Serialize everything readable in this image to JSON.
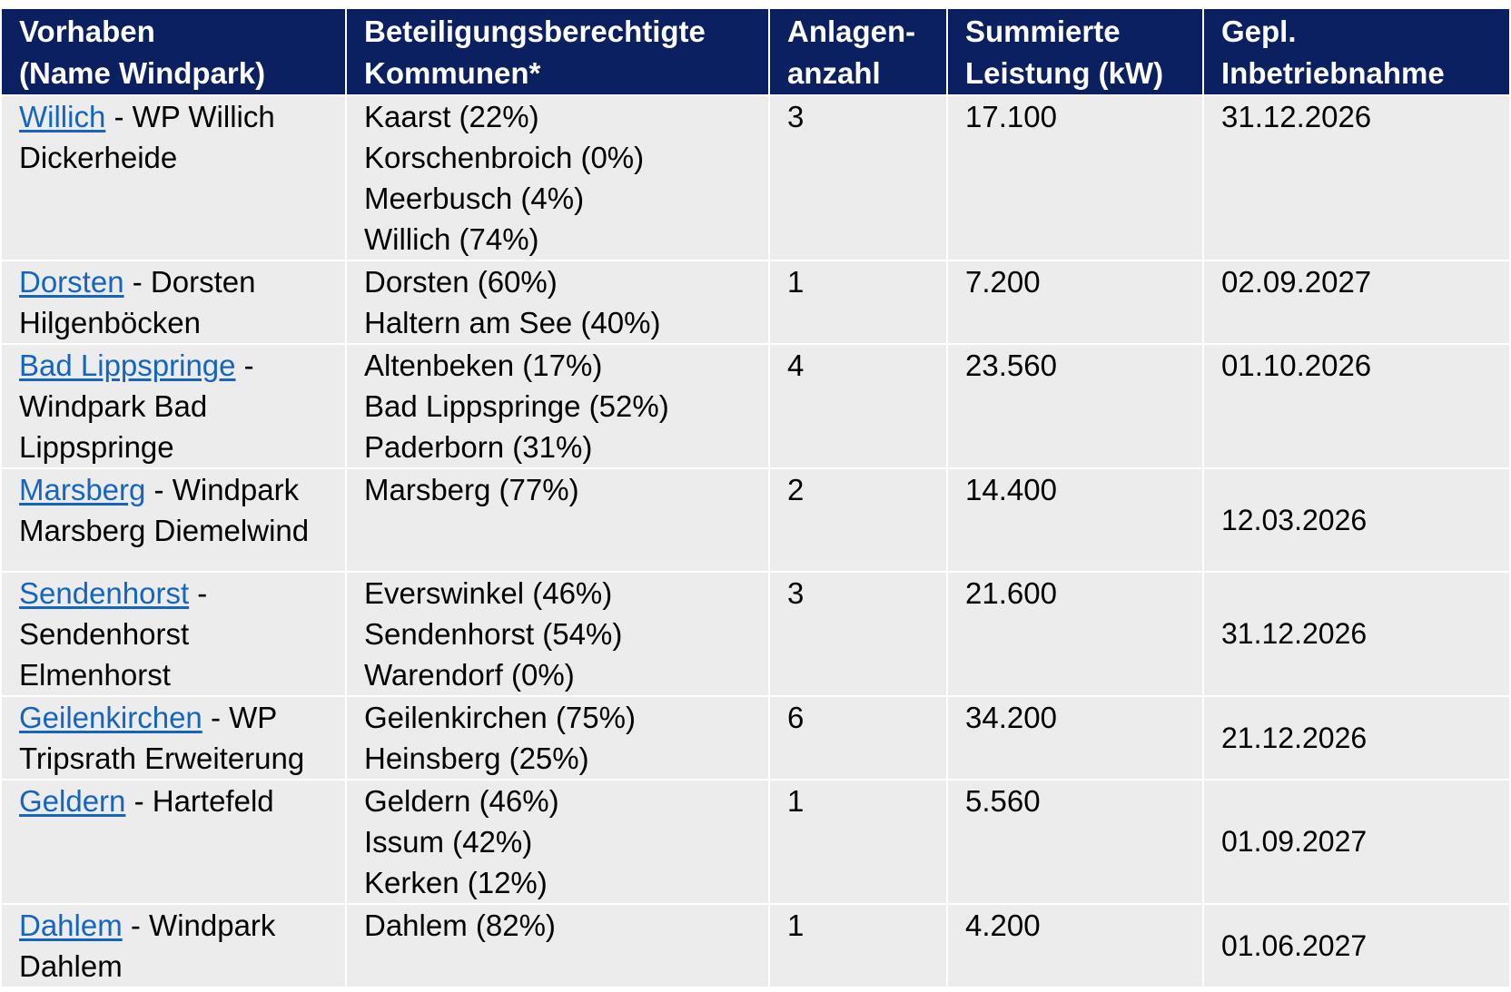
{
  "headers": [
    {
      "l1": "Vorhaben",
      "l2": "(Name Windpark)"
    },
    {
      "l1": "Beteiligungsberechtigte",
      "l2": "Kommunen*"
    },
    {
      "l1": "Anlagen-",
      "l2": "anzahl"
    },
    {
      "l1": "Summierte",
      "l2": "Leistung (kW)"
    },
    {
      "l1": "Gepl.",
      "l2": "Inbetriebnahme"
    }
  ],
  "rows": [
    {
      "link": "Willich",
      "name_lines": [
        " - WP Willich",
        "Dickerheide"
      ],
      "kommunen": [
        "Kaarst (22%)",
        "Korschenbroich (0%)",
        "Meerbusch (4%)",
        "Willich (74%)"
      ],
      "anzahl": "3",
      "leistung": "17.100",
      "datum": "31.12.2026"
    },
    {
      "link": "Dorsten",
      "name_lines": [
        " - Dorsten",
        "Hilgenböcken"
      ],
      "kommunen": [
        "Dorsten (60%)",
        "Haltern am See (40%)"
      ],
      "anzahl": "1",
      "leistung": "7.200",
      "datum": "02.09.2027"
    },
    {
      "link": "Bad Lippspringe",
      "name_lines": [
        " -",
        "Windpark Bad",
        "Lippspringe"
      ],
      "kommunen": [
        "Altenbeken (17%)",
        "Bad Lippspringe (52%)",
        "Paderborn (31%)"
      ],
      "anzahl": "4",
      "leistung": "23.560",
      "datum": "01.10.2026"
    },
    {
      "link": "Marsberg",
      "name_lines": [
        " - Windpark",
        "Marsberg Diemelwind"
      ],
      "kommunen": [
        "Marsberg (77%)"
      ],
      "anzahl": "2",
      "leistung": "14.400",
      "datum": "12.03.2026"
    },
    {
      "link": "Sendenhorst",
      "name_lines": [
        " -",
        "Sendenhorst",
        "Elmenhorst"
      ],
      "kommunen": [
        "Everswinkel (46%)",
        "Sendenhorst (54%)",
        "Warendorf (0%)"
      ],
      "anzahl": "3",
      "leistung": "21.600",
      "datum": "31.12.2026"
    },
    {
      "link": "Geilenkirchen",
      "name_lines": [
        " - WP",
        "Tripsrath Erweiterung"
      ],
      "kommunen": [
        "Geilenkirchen (75%)",
        "Heinsberg (25%)"
      ],
      "anzahl": "6",
      "leistung": "34.200",
      "datum": "21.12.2026"
    },
    {
      "link": "Geldern",
      "name_lines": [
        " - Hartefeld"
      ],
      "kommunen": [
        "Geldern (46%)",
        "Issum (42%)",
        "Kerken (12%)"
      ],
      "anzahl": "1",
      "leistung": "5.560",
      "datum": "01.09.2027"
    },
    {
      "link": "Dahlem",
      "name_lines": [
        " - Windpark",
        "Dahlem"
      ],
      "kommunen": [
        "Dahlem (82%)"
      ],
      "anzahl": "1",
      "leistung": "4.200",
      "datum": "01.06.2027"
    }
  ],
  "colors": {
    "header_bg": "#0b2060",
    "header_text": "#ffffff",
    "cell_bg": "#ececec",
    "link": "#1565c0"
  }
}
